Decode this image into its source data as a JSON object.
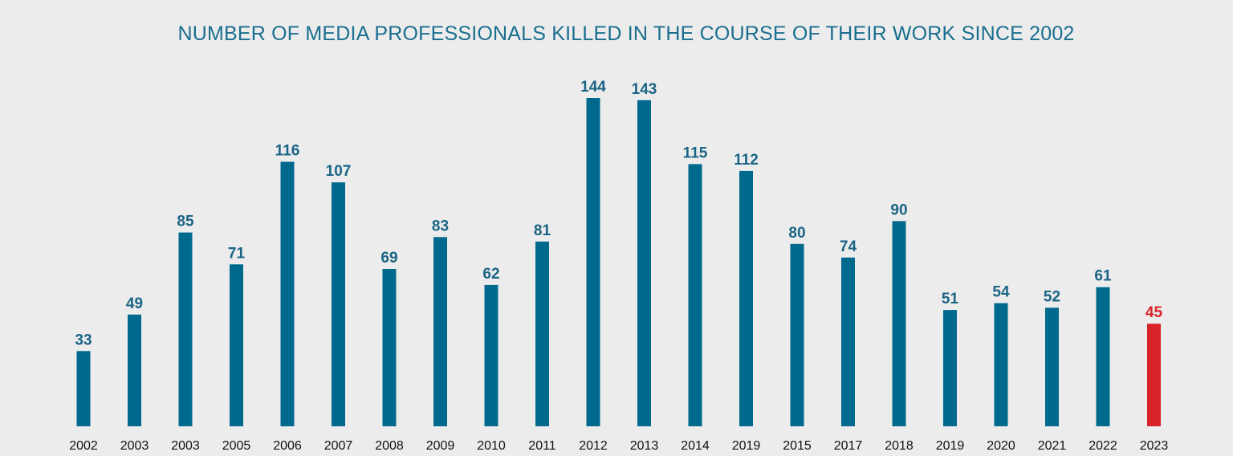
{
  "chart_data": {
    "type": "bar",
    "title": "NUMBER OF MEDIA PROFESSIONALS KILLED IN THE COURSE OF THEIR WORK SINCE 2002",
    "categories": [
      "2002",
      "2003",
      "2003",
      "2005",
      "2006",
      "2007",
      "2008",
      "2009",
      "2010",
      "2011",
      "2012",
      "2013",
      "2014",
      "2019",
      "2015",
      "2017",
      "2018",
      "2019",
      "2020",
      "2021",
      "2022",
      "2023"
    ],
    "values": [
      33,
      49,
      85,
      71,
      116,
      107,
      69,
      83,
      62,
      81,
      144,
      143,
      115,
      112,
      80,
      74,
      90,
      51,
      54,
      52,
      61,
      45
    ],
    "highlight_index": 21,
    "xlabel": "",
    "ylabel": "",
    "grid": false,
    "legend": "none",
    "colors": {
      "bar": "#006a8e",
      "value_label": "#1a6485",
      "highlight": "#d8232a",
      "title": "#1a6e8f",
      "year_label": "#111111",
      "background": "#ececec"
    }
  }
}
